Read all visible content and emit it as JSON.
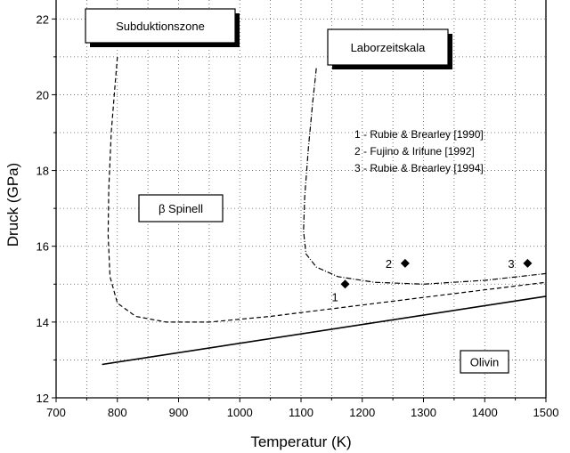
{
  "chart_data": {
    "type": "line",
    "title": "",
    "xlabel": "Temperatur (K)",
    "ylabel": "Druck (GPa)",
    "xlim": [
      700,
      1500
    ],
    "ylim": [
      12,
      22.5
    ],
    "x_ticks": [
      700,
      800,
      900,
      1000,
      1100,
      1200,
      1300,
      1400,
      1500
    ],
    "y_ticks": [
      12,
      14,
      16,
      18,
      20,
      22
    ],
    "grid": true,
    "grid_style": "dotted",
    "series": [
      {
        "style": "solid",
        "points": [
          [
            775,
            12.88
          ],
          [
            1500,
            14.68
          ]
        ]
      },
      {
        "style": "dashed",
        "points": [
          [
            800,
            21.0
          ],
          [
            796,
            20.2
          ],
          [
            790,
            19.0
          ],
          [
            786,
            17.5
          ],
          [
            785,
            16.3
          ],
          [
            788,
            15.2
          ],
          [
            800,
            14.5
          ],
          [
            830,
            14.15
          ],
          [
            880,
            14.0
          ],
          [
            950,
            14.0
          ],
          [
            1050,
            14.15
          ],
          [
            1200,
            14.45
          ],
          [
            1350,
            14.75
          ],
          [
            1500,
            15.05
          ]
        ]
      },
      {
        "style": "dash-dot",
        "points": [
          [
            1125,
            20.7
          ],
          [
            1119,
            19.8
          ],
          [
            1112,
            18.6
          ],
          [
            1106,
            17.3
          ],
          [
            1104,
            16.4
          ],
          [
            1108,
            15.8
          ],
          [
            1125,
            15.45
          ],
          [
            1160,
            15.2
          ],
          [
            1220,
            15.05
          ],
          [
            1300,
            15.0
          ],
          [
            1400,
            15.1
          ],
          [
            1500,
            15.28
          ]
        ]
      }
    ],
    "points": [
      {
        "label": "1",
        "x": 1172,
        "y": 15.0
      },
      {
        "label": "2",
        "x": 1270,
        "y": 15.55
      },
      {
        "label": "3",
        "x": 1470,
        "y": 15.55
      }
    ],
    "legend": {
      "placement": "upper-right",
      "entries": [
        "1 -  Rubie & Brearley [1990]",
        "2 -  Fujino & Irifune [1992]",
        "3 -  Rubie & Brearley [1994]"
      ]
    },
    "annotations": [
      {
        "text": "Subduktionszone",
        "boxed": true,
        "shadow": true
      },
      {
        "text": "Laborzeitskala",
        "boxed": true,
        "shadow": true
      },
      {
        "text": "β Spinell",
        "boxed": true,
        "shadow": false
      },
      {
        "text": "Olivin",
        "boxed": true,
        "shadow": false
      }
    ]
  }
}
